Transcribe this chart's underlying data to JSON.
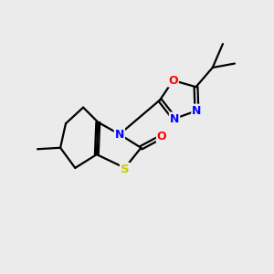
{
  "background_color": "#ebebeb",
  "bond_color": "#000000",
  "atom_colors": {
    "N": "#0000ff",
    "O": "#ff0000",
    "S": "#cccc00",
    "C": "#000000"
  },
  "figsize": [
    3.0,
    3.0
  ],
  "dpi": 100
}
